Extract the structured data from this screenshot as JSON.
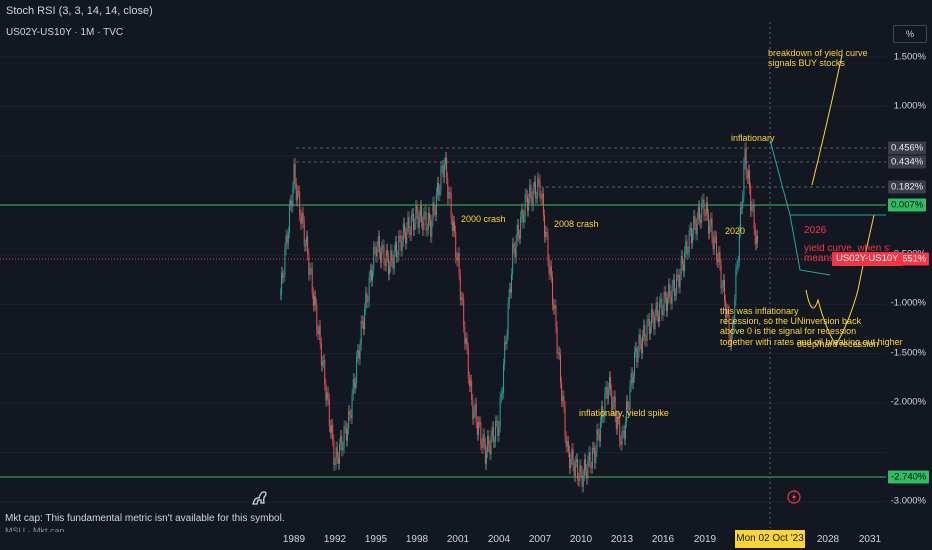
{
  "header": {
    "indicator": "Stoch RSI (3, 3, 14, 14, close)",
    "symbol": "US02Y-US10Y · 1M · TVC",
    "scale_mode": "%"
  },
  "price_axis": {
    "ticks": [
      "1.500%",
      "1.000%",
      "-0.500%",
      "-1.000%",
      "-1.500%",
      "-2.000%",
      "-3.000%"
    ],
    "tags": {
      "t1": "0.456%",
      "t2": "0.434%",
      "t3": "0.182%",
      "t4": "0.007%",
      "t5": "-0.551%",
      "t6": "-2.740%"
    },
    "symbol_tag": "US02Y-US10Y"
  },
  "time_axis": {
    "ticks": [
      "1989",
      "1992",
      "1995",
      "1998",
      "2001",
      "2004",
      "2007",
      "2010",
      "2013",
      "2016",
      "2019",
      "2028",
      "2031"
    ],
    "crosshair": "Mon 02 Oct '23"
  },
  "annotations": {
    "breakdown": "breakdown of yield curve\nsignals BUY stocks",
    "inflationary": "inflationary",
    "crash2000": "2000 crash",
    "crash2008": "2008 crash",
    "y2020": "2020",
    "y2026": "2026",
    "yield_curve": "yield curve, when sta\nmeans",
    "inflationary_recession": "this was inflationary\nrecession, so the UNinversion back\nabove 0 is the signal for recession",
    "together": "together with rates and oil breaking out higher",
    "deep_recession": "deep/hard recession",
    "yield_spike": "inflationary, yield spike"
  },
  "footer": {
    "market_cap": "Mkt cap: This fundamental metric isn't available for this symbol.",
    "sub": "MSU · Mkt cap"
  },
  "colors": {
    "background": "#131722",
    "up_candle": "#26a69a",
    "down_candle": "#ef5350",
    "annotation": "#fcd535",
    "green_line": "#2ebd61",
    "red_line": "#f23645"
  },
  "chart_data": {
    "type": "line",
    "xlabel": "",
    "ylabel": "",
    "ylim": [
      -3.0,
      1.75
    ],
    "x": [
      1988,
      1989,
      1990,
      1991,
      1992,
      1993,
      1994,
      1995,
      1996,
      1997,
      1998,
      1999,
      2000,
      2001,
      2002,
      2003,
      2004,
      2005,
      2006,
      2007,
      2008,
      2009,
      2010,
      2011,
      2012,
      2013,
      2014,
      2015,
      2016,
      2017,
      2018,
      2019,
      2020,
      2021,
      2022,
      2023
    ],
    "series": [
      {
        "values": [
          -0.9,
          0.3,
          -0.5,
          -1.5,
          -2.6,
          -2.2,
          -1.2,
          -0.4,
          -0.6,
          -0.3,
          -0.1,
          -0.2,
          0.45,
          -0.6,
          -2.0,
          -2.5,
          -2.2,
          -0.5,
          0.05,
          0.2,
          -1.0,
          -2.5,
          -2.75,
          -2.5,
          -1.8,
          -2.4,
          -1.5,
          -1.2,
          -1.0,
          -0.8,
          -0.3,
          0.0,
          -0.5,
          -1.4,
          0.5,
          -0.55
        ]
      }
    ]
  }
}
